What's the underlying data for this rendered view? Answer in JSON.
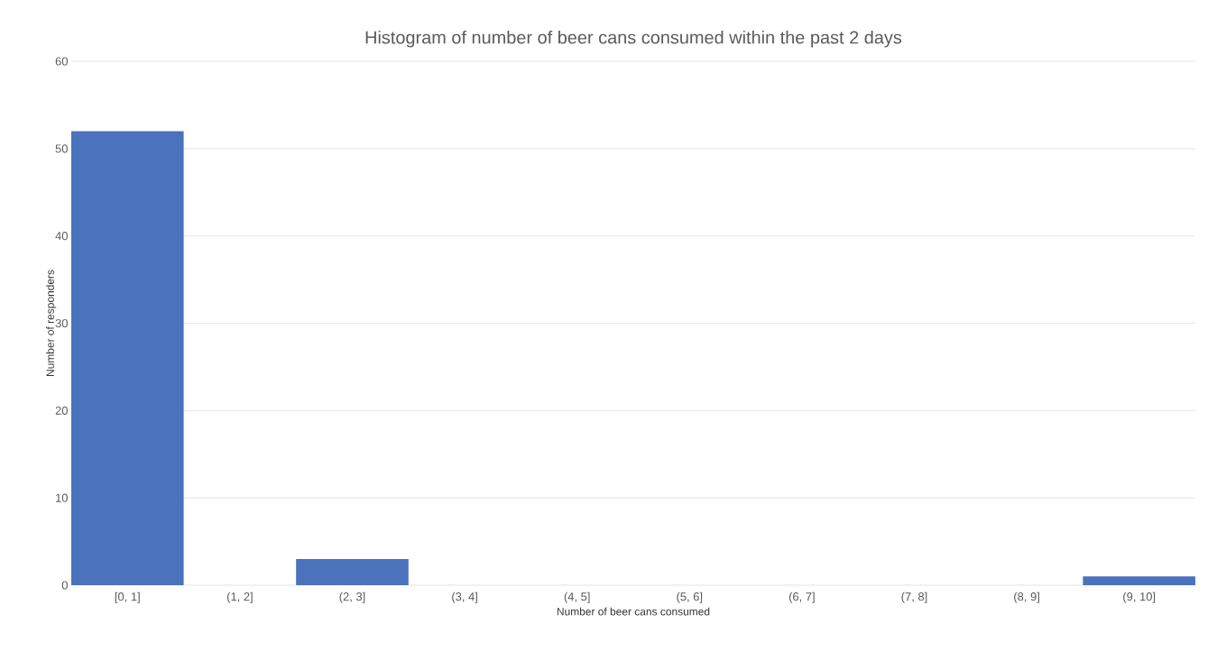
{
  "chart_data": {
    "type": "bar",
    "title": "Histogram of number of beer cans consumed within the past 2 days",
    "xlabel": "Number of beer cans consumed",
    "ylabel": "Number of responders",
    "categories": [
      "[0, 1]",
      "(1, 2]",
      "(2, 3]",
      "(3, 4]",
      "(4, 5]",
      "(5, 6]",
      "(6, 7]",
      "(7, 8]",
      "(8, 9]",
      "(9, 10]"
    ],
    "values": [
      52,
      0,
      3,
      0,
      0,
      0,
      0,
      0,
      0,
      1
    ],
    "color": "#4a72bd",
    "ylim": [
      0,
      60
    ],
    "yticks": [
      0,
      10,
      20,
      30,
      40,
      50,
      60
    ],
    "grid": "y"
  }
}
